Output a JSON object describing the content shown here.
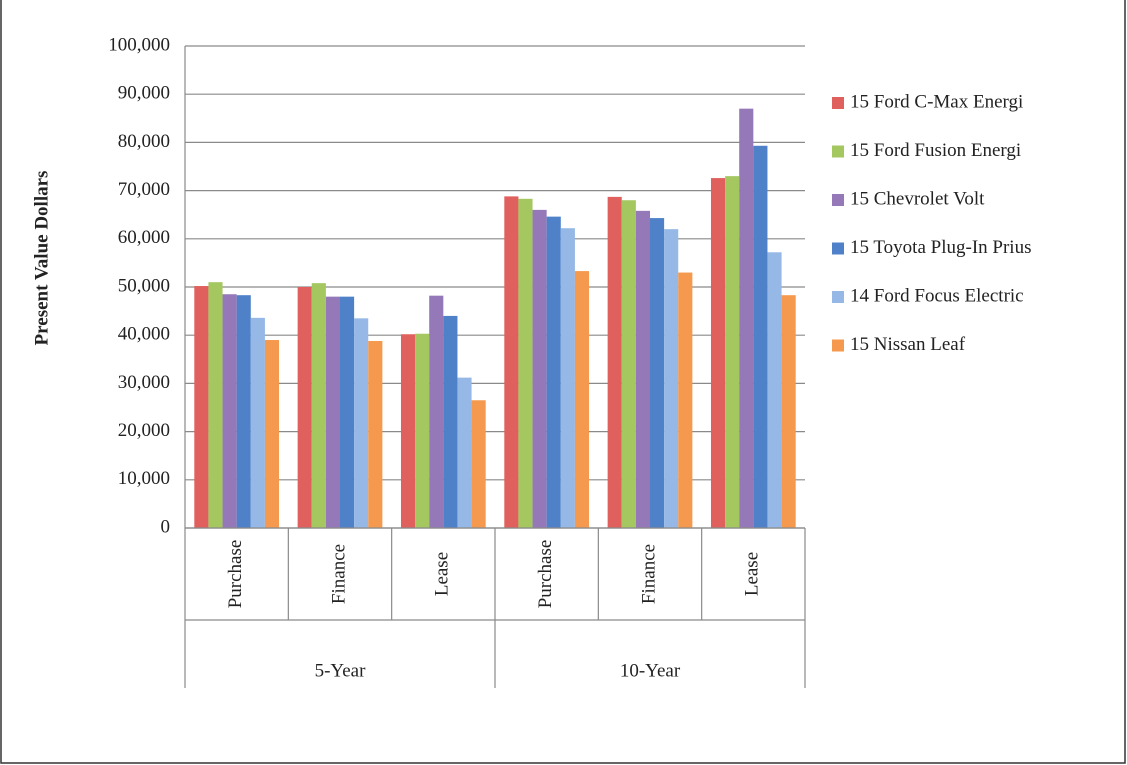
{
  "chart_data": {
    "type": "bar",
    "y_label": "Present Value Dollars",
    "groups": [
      {
        "name": "5-Year",
        "categories": [
          "Purchase",
          "Finance",
          "Lease"
        ]
      },
      {
        "name": "10-Year",
        "categories": [
          "Purchase",
          "Finance",
          "Lease"
        ]
      }
    ],
    "series": [
      {
        "name": "15 Ford C-Max Energi",
        "color": "#e0605d",
        "values": [
          50200,
          50000,
          40200,
          68800,
          68700,
          72600
        ]
      },
      {
        "name": "15 Ford Fusion Energi",
        "color": "#a4c760",
        "values": [
          51000,
          50800,
          40300,
          68300,
          68000,
          73000
        ]
      },
      {
        "name": "15 Chevrolet Volt",
        "color": "#9478b8",
        "values": [
          48500,
          48000,
          48200,
          66000,
          65800,
          87000
        ]
      },
      {
        "name": "15 Toyota Plug-In Prius",
        "color": "#4f81c9",
        "values": [
          48300,
          48000,
          44000,
          64600,
          64300,
          79300
        ]
      },
      {
        "name": "14 Ford Focus Electric",
        "color": "#95b8e6",
        "values": [
          43600,
          43500,
          31200,
          62200,
          62000,
          57200
        ]
      },
      {
        "name": "15 Nissan Leaf",
        "color": "#f5994e",
        "values": [
          39000,
          38800,
          26500,
          53300,
          53000,
          48300
        ]
      }
    ],
    "ylim": [
      0,
      100000
    ],
    "yticks": [
      0,
      {
        "value": 10000,
        "label": "10,000"
      },
      {
        "value": 20000,
        "label": "20,000"
      },
      {
        "value": 30000,
        "label": "30,000"
      },
      {
        "value": 40000,
        "label": "40,000"
      },
      {
        "value": 50000,
        "label": "50,000"
      },
      {
        "value": 60000,
        "label": "60,000"
      },
      {
        "value": 70000,
        "label": "70,000"
      },
      {
        "value": 80000,
        "label": "80,000"
      },
      {
        "value": 90000,
        "label": "90,000"
      },
      {
        "value": 100000,
        "label": "100,000"
      }
    ],
    "grid": true,
    "legend": "right"
  }
}
